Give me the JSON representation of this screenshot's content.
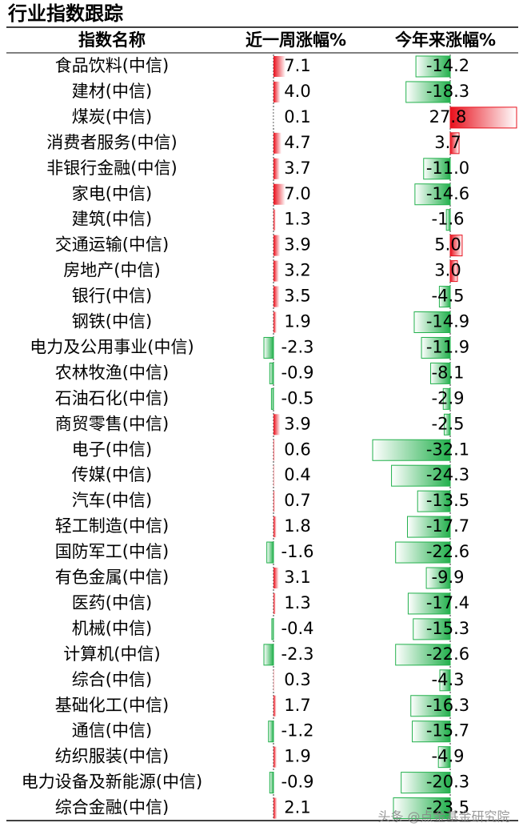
{
  "title": "行业指数跟踪",
  "table": {
    "headers": [
      "指数名称",
      "近一周涨幅%",
      "今年来涨幅%"
    ],
    "rows": [
      [
        "食品饮料(中信)",
        "7.1",
        "-14.2"
      ],
      [
        "建材(中信)",
        "4.0",
        "-18.3"
      ],
      [
        "煤炭(中信)",
        "0.1",
        "27.8"
      ],
      [
        "消费者服务(中信)",
        "4.7",
        "3.7"
      ],
      [
        "非银行金融(中信)",
        "3.7",
        "-11.0"
      ],
      [
        "家电(中信)",
        "7.0",
        "-14.6"
      ],
      [
        "建筑(中信)",
        "1.3",
        "-1.6"
      ],
      [
        "交通运输(中信)",
        "3.9",
        "5.0"
      ],
      [
        "房地产(中信)",
        "3.2",
        "3.0"
      ],
      [
        "银行(中信)",
        "3.5",
        "-4.5"
      ],
      [
        "钢铁(中信)",
        "1.9",
        "-14.9"
      ],
      [
        "电力及公用事业(中信)",
        "-2.3",
        "-11.9"
      ],
      [
        "农林牧渔(中信)",
        "-0.9",
        "-8.1"
      ],
      [
        "石油石化(中信)",
        "-0.5",
        "-2.9"
      ],
      [
        "商贸零售(中信)",
        "3.9",
        "-2.5"
      ],
      [
        "电子(中信)",
        "0.6",
        "-32.1"
      ],
      [
        "传媒(中信)",
        "0.4",
        "-24.3"
      ],
      [
        "汽车(中信)",
        "0.7",
        "-13.5"
      ],
      [
        "轻工制造(中信)",
        "1.8",
        "-17.7"
      ],
      [
        "国防军工(中信)",
        "-1.6",
        "-22.6"
      ],
      [
        "有色金属(中信)",
        "3.1",
        "-9.9"
      ],
      [
        "医药(中信)",
        "1.3",
        "-17.4"
      ],
      [
        "机械(中信)",
        "-0.4",
        "-15.3"
      ],
      [
        "计算机(中信)",
        "-2.3",
        "-22.6"
      ],
      [
        "综合(中信)",
        "0.3",
        "-4.3"
      ],
      [
        "基础化工(中信)",
        "1.7",
        "-16.3"
      ],
      [
        "通信(中信)",
        "-1.2",
        "-15.7"
      ],
      [
        "纺织服装(中信)",
        "1.9",
        "-4.9"
      ],
      [
        "电力设备及新能源(中信)",
        "-0.9",
        "-20.3"
      ],
      [
        "综合金融(中信)",
        "2.1",
        "-23.5"
      ]
    ]
  },
  "watermark": "头条 @点金基金研究院"
}
